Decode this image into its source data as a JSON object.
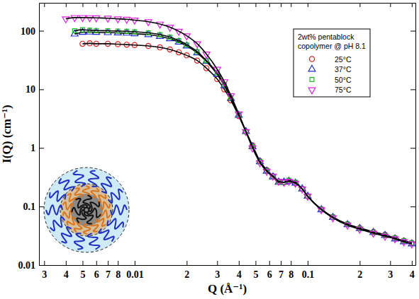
{
  "chart_data": {
    "type": "scatter",
    "title": "2wt% pentablock copolymer @ pH 8.1",
    "xlabel": "Q (Å⁻¹)",
    "ylabel": "I(Q) (cm⁻¹)",
    "log": true,
    "grid": false,
    "legend": "top-right",
    "xlim": [
      0.0028,
      0.42
    ],
    "ylim": [
      0.01,
      300
    ],
    "xticks": [
      {
        "value": 0.003,
        "label": "3"
      },
      {
        "value": 0.004,
        "label": "4"
      },
      {
        "value": 0.005,
        "label": "5"
      },
      {
        "value": 0.006,
        "label": "6"
      },
      {
        "value": 0.007,
        "label": "7"
      },
      {
        "value": 0.008,
        "label": "8"
      },
      0.01,
      {
        "value": 0.02,
        "label": "2"
      },
      {
        "value": 0.03,
        "label": "3"
      },
      {
        "value": 0.04,
        "label": "4"
      },
      {
        "value": 0.05,
        "label": "5"
      },
      {
        "value": 0.06,
        "label": "6"
      },
      {
        "value": 0.07,
        "label": "7"
      },
      {
        "value": 0.08,
        "label": "8"
      },
      0.1,
      {
        "value": 0.2,
        "label": "2"
      },
      {
        "value": 0.3,
        "label": "3"
      },
      {
        "value": 0.4,
        "label": "4"
      }
    ],
    "yticks": [
      0.01,
      0.1,
      1,
      10,
      100
    ],
    "x": [
      0.004,
      0.0045,
      0.005,
      0.0055,
      0.006,
      0.007,
      0.008,
      0.009,
      0.01,
      0.012,
      0.014,
      0.016,
      0.018,
      0.02,
      0.023,
      0.026,
      0.03,
      0.033,
      0.036,
      0.04,
      0.044,
      0.048,
      0.053,
      0.058,
      0.063,
      0.068,
      0.073,
      0.078,
      0.085,
      0.093,
      0.1,
      0.12,
      0.14,
      0.17,
      0.2,
      0.24,
      0.28,
      0.32,
      0.36,
      0.4
    ],
    "series": [
      {
        "name": "25°C",
        "color": "#e02020",
        "marker": "circle",
        "line_style": "solid",
        "values": [
          null,
          null,
          60,
          61,
          60,
          60,
          59,
          58,
          57,
          55,
          52,
          48,
          43,
          38,
          31,
          23,
          15,
          10,
          6.5,
          3.5,
          1.9,
          1.1,
          0.6,
          0.42,
          0.33,
          0.27,
          0.26,
          0.27,
          0.25,
          0.2,
          0.15,
          0.09,
          0.066,
          0.05,
          0.043,
          0.037,
          0.033,
          0.029,
          0.026,
          0.024
        ]
      },
      {
        "name": "37°C",
        "color": "#2030d0",
        "marker": "triangle-up",
        "line_style": "solid",
        "values": [
          null,
          88,
          94,
          95,
          94,
          93,
          92,
          91,
          89,
          86,
          80,
          73,
          64,
          55,
          42,
          30,
          18,
          11.5,
          7,
          3.6,
          1.9,
          1.05,
          0.58,
          0.4,
          0.32,
          0.26,
          0.26,
          0.27,
          0.25,
          0.2,
          0.15,
          0.088,
          0.065,
          0.049,
          0.042,
          0.036,
          0.032,
          0.028,
          0.025,
          0.023
        ]
      },
      {
        "name": "50°C",
        "color": "#20c020",
        "marker": "square",
        "line_style": "solid",
        "values": [
          null,
          100,
          104,
          102,
          101,
          100,
          99,
          98,
          96,
          92,
          86,
          78,
          68,
          58,
          44,
          31,
          19,
          12,
          7.2,
          3.7,
          1.9,
          1.05,
          0.58,
          0.41,
          0.33,
          0.26,
          0.26,
          0.28,
          0.26,
          0.2,
          0.15,
          0.09,
          0.066,
          0.05,
          0.042,
          0.036,
          0.032,
          0.029,
          0.026,
          0.024
        ]
      },
      {
        "name": "75°C",
        "color": "#e020e0",
        "marker": "triangle-down",
        "line_style": "solid",
        "values": [
          160,
          168,
          168,
          167,
          166,
          164,
          160,
          157,
          152,
          143,
          130,
          115,
          98,
          82,
          60,
          40,
          22,
          13.5,
          7.8,
          3.8,
          1.9,
          1.0,
          0.56,
          0.4,
          0.33,
          0.27,
          0.26,
          0.27,
          0.25,
          0.2,
          0.15,
          0.088,
          0.064,
          0.048,
          0.041,
          0.035,
          0.031,
          0.028,
          0.025,
          0.023
        ]
      }
    ]
  }
}
